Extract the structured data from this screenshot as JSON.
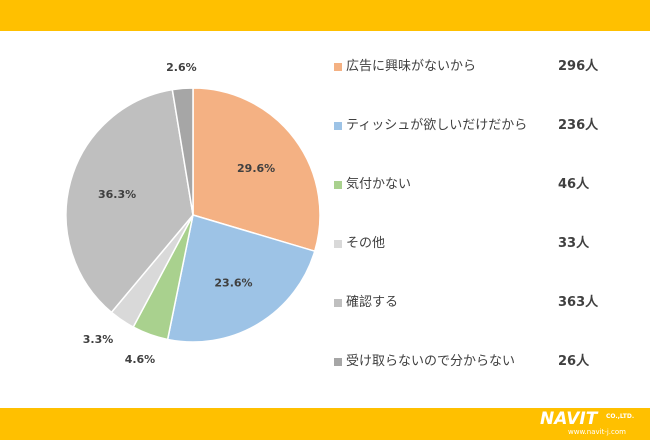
{
  "colors": {
    "band": "#FFC000",
    "text": "#404040"
  },
  "chart_data": {
    "type": "pie",
    "categories": [
      "広告に興味がないから",
      "ティッシュが欲しいだけだから",
      "気付かない",
      "その他",
      "確認する",
      "受け取らないので分からない"
    ],
    "values": [
      296,
      236,
      46,
      33,
      363,
      26
    ],
    "unit": "人",
    "percent_labels": [
      "29.6%",
      "23.6%",
      "4.6%",
      "3.3%",
      "36.3%",
      "2.6%"
    ],
    "colors": [
      "#F4B183",
      "#9DC3E6",
      "#A9D18E",
      "#D9D9D9",
      "#BFBFBF",
      "#A6A6A6"
    ],
    "legend_position": "right",
    "start": "top",
    "direction": "clockwise"
  },
  "legend": {
    "items": [
      {
        "label": "広告に興味がないから",
        "count": "296人"
      },
      {
        "label": "ティッシュが欲しいだけだから",
        "count": "236人"
      },
      {
        "label": "気付かない",
        "count": "46人"
      },
      {
        "label": "その他",
        "count": "33人"
      },
      {
        "label": "確認する",
        "count": "363人"
      },
      {
        "label": "受け取らないので分からない",
        "count": "26人"
      }
    ]
  },
  "branding": {
    "logo_text": "NAVIT",
    "company_suffix": "CO.,LTD.",
    "url": "www.navit-j.com"
  }
}
